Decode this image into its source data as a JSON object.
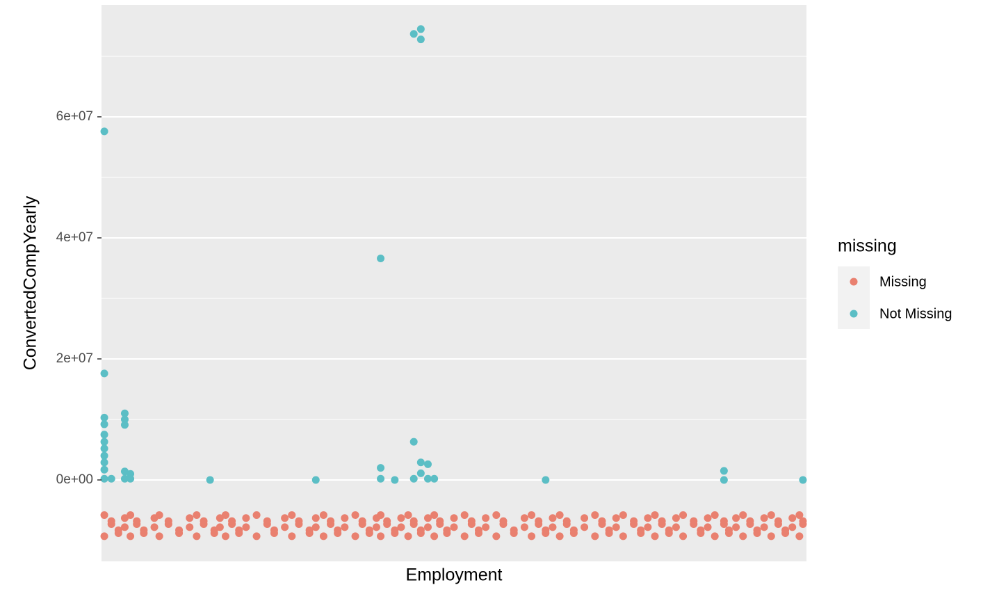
{
  "chart_data": {
    "type": "scatter",
    "x_label": "Employment",
    "y_label": "ConvertedCompYearly",
    "legend_title": "missing",
    "legend_position": "right",
    "grid": true,
    "xlim": [
      0,
      100
    ],
    "ylim": [
      -13450000,
      78500000
    ],
    "yticks": [
      {
        "value": 0,
        "label": "0e+00"
      },
      {
        "value": 20000000,
        "label": "2e+07"
      },
      {
        "value": 40000000,
        "label": "4e+07"
      },
      {
        "value": 60000000,
        "label": "6e+07"
      }
    ],
    "minor_yticks": [
      10000000,
      30000000,
      50000000,
      70000000
    ],
    "series": [
      {
        "name": "Missing",
        "color": "#E9806F",
        "x": [
          0.4,
          1.4,
          2.4,
          3.3,
          4.1,
          5,
          6,
          7.5,
          8.2,
          9.5,
          11,
          12.5,
          13.5,
          14.5,
          16,
          16.8,
          17.6,
          18.5,
          19.5,
          20.5,
          22,
          23.5,
          24.5,
          26,
          27,
          28,
          29.5,
          30.4,
          31.5,
          32.5,
          33.5,
          34.5,
          36,
          37,
          38,
          39,
          39.6,
          40.5,
          41.6,
          42.5,
          43.5,
          44.3,
          45.3,
          46.3,
          47.2,
          48,
          49,
          50,
          51.5,
          52.5,
          53.5,
          54.5,
          56,
          57,
          58.5,
          60,
          61,
          62,
          63,
          64,
          65,
          66,
          67,
          68.5,
          70,
          71,
          72,
          73,
          74,
          75.5,
          76.5,
          77.5,
          78.5,
          79.5,
          80.5,
          81.5,
          82.5,
          84,
          85,
          86,
          87,
          88.3,
          89,
          90,
          91,
          92,
          93,
          94,
          95,
          96,
          97,
          98,
          99,
          99.5,
          0.4,
          1.4,
          2.4,
          3.3,
          4.1,
          5,
          6,
          7.5,
          8.2,
          9.5,
          11,
          12.5,
          13.5,
          14.5,
          16,
          16.8,
          17.6,
          18.5,
          19.5,
          20.5,
          22,
          23.5,
          24.5,
          26,
          27,
          28,
          29.5,
          30.4,
          31.5,
          32.5,
          33.5,
          34.5,
          36,
          37,
          38,
          39,
          39.6,
          40.5,
          41.6,
          42.5,
          43.5,
          44.3,
          45.3,
          46.3,
          47.2,
          48,
          49,
          50,
          51.5,
          52.5,
          53.5,
          54.5,
          56,
          57,
          58.5,
          60,
          61,
          62,
          63,
          64,
          65,
          66,
          67,
          68.5,
          70,
          71,
          72,
          73,
          74,
          75.5,
          76.5,
          77.5,
          78.5,
          79.5,
          80.5,
          81.5,
          82.5,
          84,
          85,
          86,
          87,
          88.3,
          89,
          90,
          91,
          92,
          93,
          94,
          95,
          96,
          97,
          98,
          99,
          99.5
        ],
        "values": [
          -5800000,
          -7300000,
          -8800000,
          -6300000,
          -9300000,
          -6800000,
          -8300000,
          -7800000,
          -5800000,
          -7300000,
          -8800000,
          -6300000,
          -9300000,
          -6800000,
          -8300000,
          -7800000,
          -5800000,
          -7300000,
          -8800000,
          -6300000,
          -9300000,
          -6800000,
          -8300000,
          -7800000,
          -5800000,
          -7300000,
          -8800000,
          -6300000,
          -9300000,
          -6800000,
          -8300000,
          -7800000,
          -5800000,
          -7300000,
          -8800000,
          -6300000,
          -9300000,
          -6800000,
          -8300000,
          -7800000,
          -5800000,
          -7300000,
          -8800000,
          -6300000,
          -9300000,
          -6800000,
          -8300000,
          -7800000,
          -5800000,
          -7300000,
          -8800000,
          -6300000,
          -9300000,
          -6800000,
          -8300000,
          -7800000,
          -5800000,
          -7300000,
          -8800000,
          -6300000,
          -9300000,
          -6800000,
          -8300000,
          -7800000,
          -5800000,
          -7300000,
          -8800000,
          -6300000,
          -9300000,
          -6800000,
          -8300000,
          -7800000,
          -5800000,
          -7300000,
          -8800000,
          -6300000,
          -9300000,
          -6800000,
          -8300000,
          -7800000,
          -5800000,
          -7300000,
          -8800000,
          -6300000,
          -9300000,
          -6800000,
          -8300000,
          -7800000,
          -5800000,
          -7300000,
          -8800000,
          -6300000,
          -9300000,
          -6800000,
          -9300000,
          -6800000,
          -8300000,
          -7800000,
          -5800000,
          -7300000,
          -8800000,
          -6300000,
          -9300000,
          -6800000,
          -8300000,
          -7800000,
          -5800000,
          -7300000,
          -8800000,
          -6300000,
          -9300000,
          -6800000,
          -8300000,
          -7800000,
          -5800000,
          -7300000,
          -8800000,
          -6300000,
          -9300000,
          -6800000,
          -8300000,
          -7800000,
          -5800000,
          -7300000,
          -8800000,
          -6300000,
          -9300000,
          -6800000,
          -8300000,
          -7800000,
          -5800000,
          -7300000,
          -8800000,
          -6300000,
          -9300000,
          -6800000,
          -8300000,
          -7800000,
          -5800000,
          -7300000,
          -8800000,
          -6300000,
          -9300000,
          -6800000,
          -8300000,
          -7800000,
          -5800000,
          -7300000,
          -8800000,
          -6300000,
          -9300000,
          -6800000,
          -8300000,
          -7800000,
          -5800000,
          -7300000,
          -8800000,
          -6300000,
          -9300000,
          -6800000,
          -8300000,
          -7800000,
          -5800000,
          -7300000,
          -8800000,
          -6300000,
          -9300000,
          -6800000,
          -8300000,
          -7800000,
          -5800000,
          -7300000,
          -8800000,
          -6300000,
          -9300000,
          -6800000,
          -8300000,
          -7800000,
          -5800000,
          -7300000,
          -8800000,
          -6300000,
          -9300000,
          -6800000,
          -8300000,
          -7800000,
          -5800000,
          -7300000
        ]
      },
      {
        "name": "Not Missing",
        "color": "#5BBEC5",
        "x": [
          0.4,
          0.4,
          0.4,
          0.4,
          0.4,
          0.4,
          0.4,
          0.4,
          0.4,
          0.4,
          0.4,
          1.4,
          3.3,
          3.3,
          3.3,
          3.3,
          3.3,
          4.1,
          4.1,
          15.4,
          30.4,
          39.6,
          39.6,
          39.6,
          41.6,
          44.3,
          45.3,
          45.3,
          44.3,
          44.3,
          45.3,
          45.3,
          46.3,
          46.3,
          47.2,
          63,
          88.3,
          88.3,
          99.5
        ],
        "values": [
          57600000,
          17600000,
          10300000,
          9200000,
          7500000,
          6300000,
          5200000,
          4000000,
          2900000,
          1700000,
          200000,
          200000,
          11000000,
          10000000,
          9100000,
          1400000,
          200000,
          1000000,
          200000,
          0,
          0,
          36600000,
          2000000,
          200000,
          0,
          73700000,
          74500000,
          72800000,
          6300000,
          200000,
          2900000,
          1100000,
          2600000,
          200000,
          200000,
          0,
          1500000,
          0,
          0
        ]
      }
    ]
  }
}
